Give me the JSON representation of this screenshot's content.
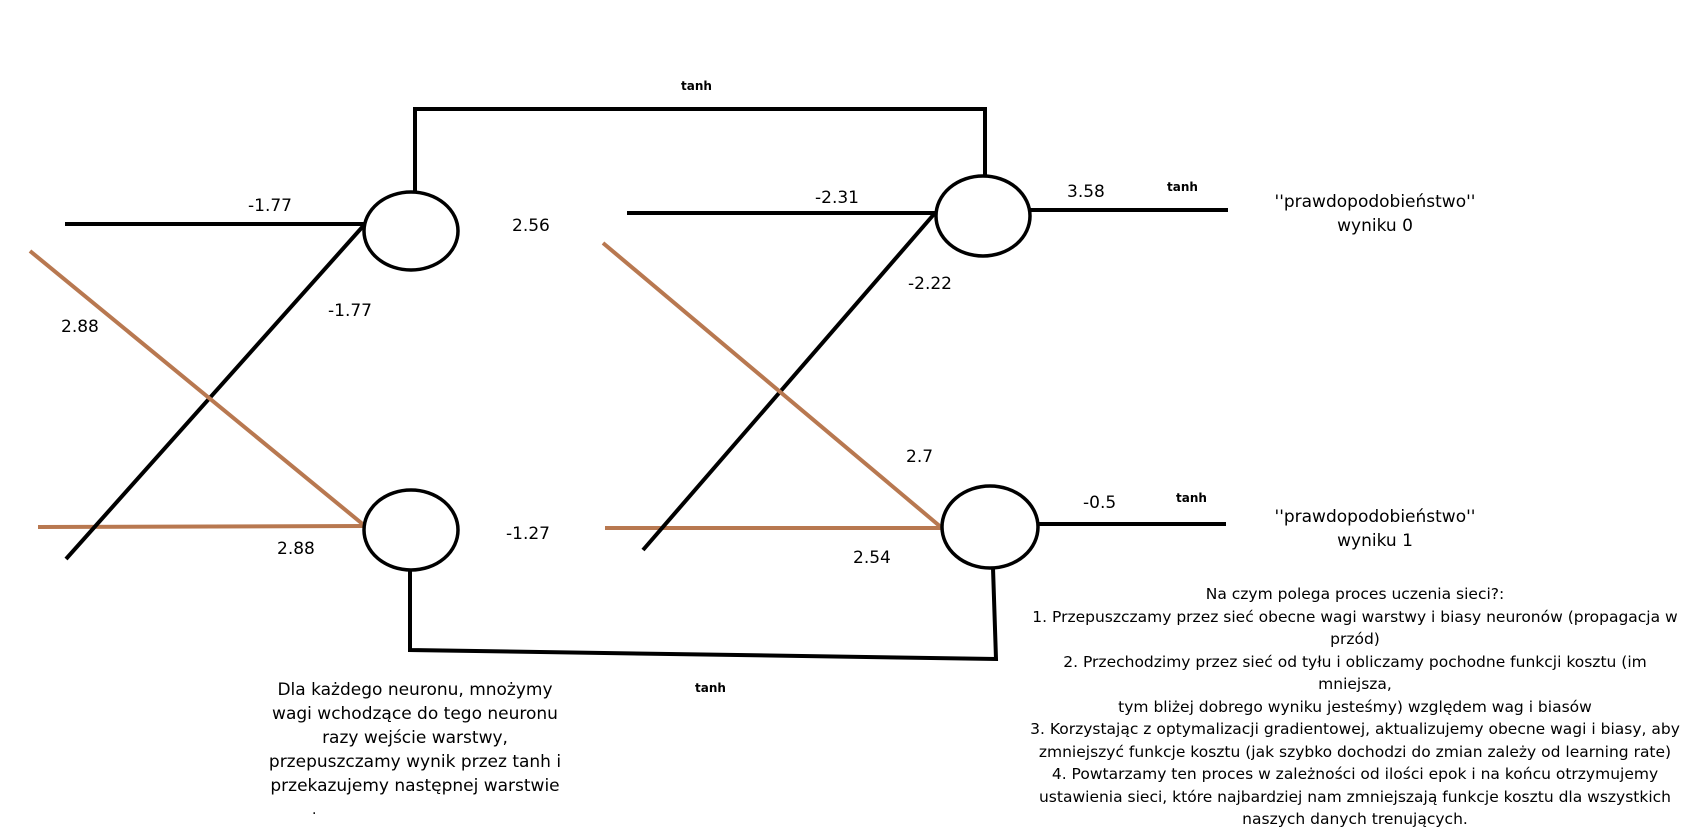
{
  "diagram": {
    "activation_labels": {
      "top": "tanh",
      "bottom": "tanh",
      "out0": "tanh",
      "out1": "tanh"
    },
    "weights": {
      "l1_top_in": "-1.77",
      "l1_cross_to_top": "-1.77",
      "l1_brown_cross": "2.88",
      "l1_bottom_in": "2.88",
      "l2_top_in": "-2.31",
      "l2_cross_to_top": "-2.22",
      "l2_brown_cross": "2.7",
      "l2_bottom_in": "2.54",
      "out_top": "3.58",
      "out_bottom": "-0.5"
    },
    "biases": {
      "h1": "2.56",
      "h2": "-1.27"
    },
    "colors": {
      "line": "#000000",
      "cross_line": "#b87850"
    }
  },
  "outputs": {
    "out0": {
      "line1": "''prawdopodobieństwo''",
      "line2": "wyniku 0"
    },
    "out1": {
      "line1": "''prawdopodobieństwo''",
      "line2": "wyniku 1"
    }
  },
  "description": {
    "lines": [
      "Dla każdego neuronu, mnożymy",
      "wagi wchodzące do tego neuronu",
      "razy  wejście warstwy,",
      "przepuszczamy wynik przez tanh i",
      "przekazujemy następnej warstwie"
    ],
    "dot": "."
  },
  "training": {
    "title": "Na czym polega proces uczenia sieci?:",
    "lines": [
      "1. Przepuszczamy przez sieć obecne wagi warstwy i biasy neuronów (propagacja w",
      "przód)",
      "2. Przechodzimy przez sieć od tyłu i obliczamy pochodne funkcji kosztu (im mniejsza,",
      "tym bliżej dobrego wyniku jesteśmy) względem wag i biasów",
      "3. Korzystając z optymalizacji gradientowej, aktualizujemy obecne wagi i biasy, aby",
      "zmniejszyć funkcje kosztu (jak szybko dochodzi do zmian zależy od learning rate)",
      "4. Powtarzamy ten proces w zależności od ilości epok i na końcu otrzymujemy",
      "ustawienia sieci, które najbardziej nam zmniejszają funkcje kosztu dla wszystkich",
      "naszych danych trenujących."
    ]
  }
}
